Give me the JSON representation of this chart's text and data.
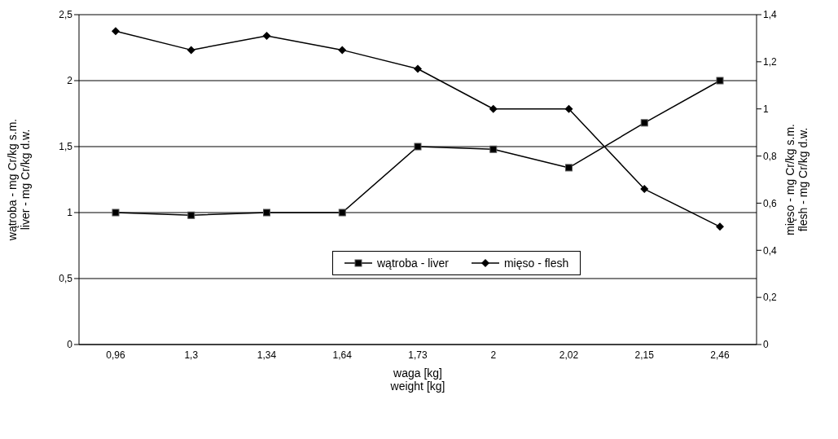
{
  "chart_data": {
    "type": "line",
    "categories": [
      "0,96",
      "1,3",
      "1,34",
      "1,64",
      "1,73",
      "2",
      "2,02",
      "2,15",
      "2,46"
    ],
    "series": [
      {
        "name": "wątroba - liver",
        "color": "#000000",
        "marker": "square",
        "values": [
          1.0,
          0.98,
          1.0,
          1.0,
          1.5,
          1.48,
          1.34,
          1.68,
          2.0
        ]
      },
      {
        "name": "mięso - flesh",
        "color": "#000000",
        "marker": "diamond",
        "axis": "y2",
        "values": [
          1.33,
          1.25,
          1.31,
          1.25,
          1.17,
          1.0,
          1.0,
          0.66,
          0.5
        ]
      }
    ],
    "xlabel": "waga [kg]\nweight [kg]",
    "ylabel": "wątroba - mg Cr/kg s.m.\nliver - mg Cr/kg d.w.",
    "y2label": "mięso - mg Cr/kg s.m.\nflesh - mg Cr/kg d.w.",
    "ylim": [
      0,
      2.5
    ],
    "yticks": [
      {
        "value": 0,
        "label": "0"
      },
      {
        "value": 0.5,
        "label": "0,5"
      },
      {
        "value": 1,
        "label": "1"
      },
      {
        "value": 1.5,
        "label": "1,5"
      },
      {
        "value": 2,
        "label": "2"
      },
      {
        "value": 2.5,
        "label": "2,5"
      }
    ],
    "y2lim": [
      0,
      1.4
    ],
    "y2ticks": [
      {
        "value": 0,
        "label": "0"
      },
      {
        "value": 0.2,
        "label": "0,2"
      },
      {
        "value": 0.4,
        "label": "0,4"
      },
      {
        "value": 0.6,
        "label": "0,6"
      },
      {
        "value": 0.8,
        "label": "0,8"
      },
      {
        "value": 1,
        "label": "1"
      },
      {
        "value": 1.2,
        "label": "1,2"
      },
      {
        "value": 1.4,
        "label": "1,4"
      }
    ],
    "grid": "y",
    "legend": "center",
    "line_style": "solid"
  }
}
